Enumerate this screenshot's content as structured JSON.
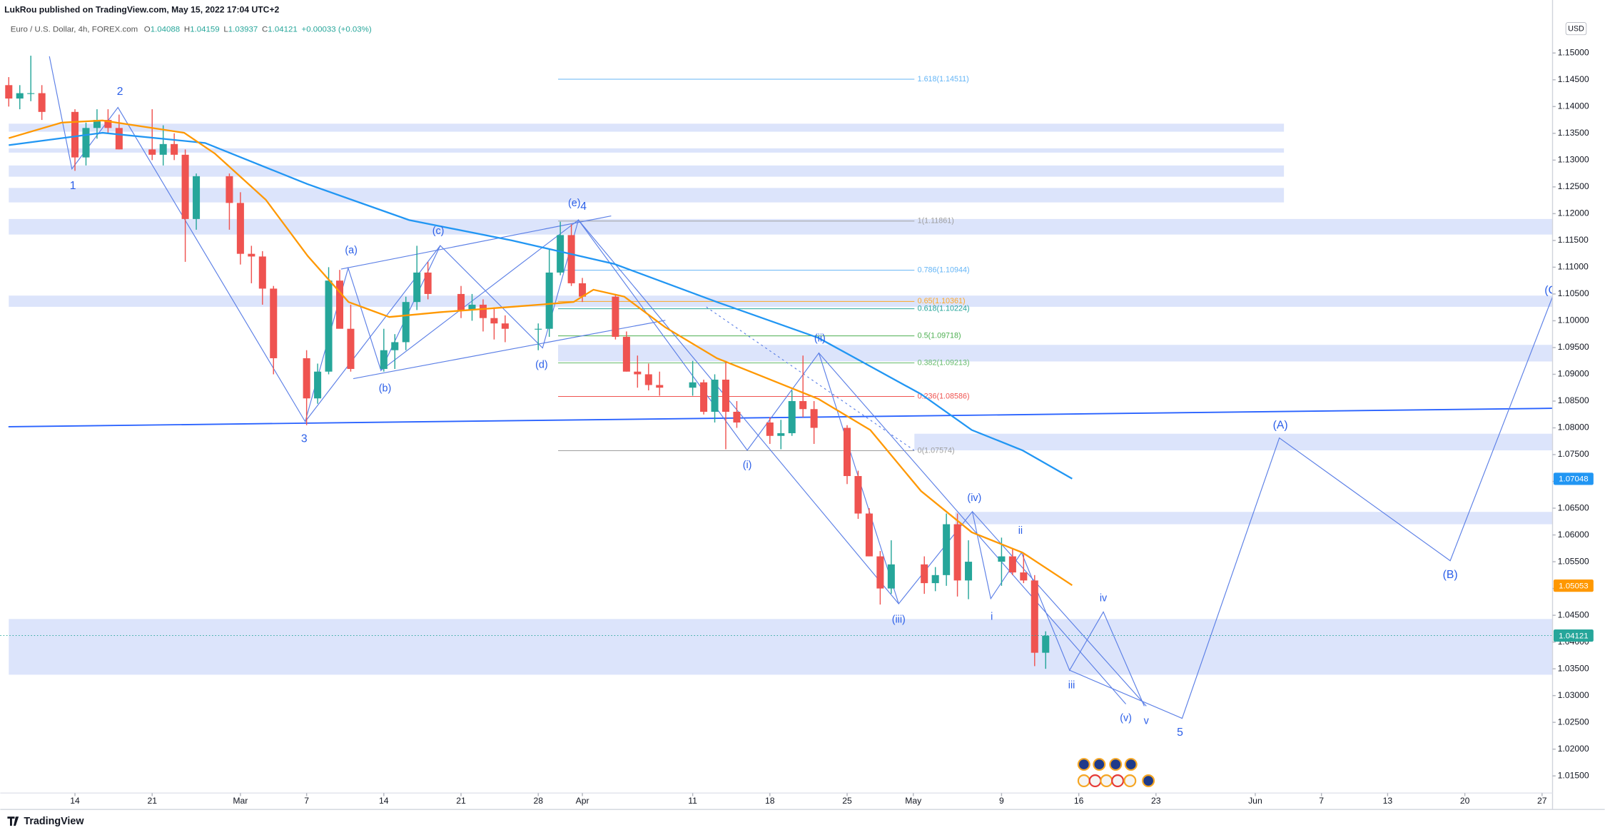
{
  "header": {
    "publisher": "LukRou published on TradingView.com, May 15, 2022 17:04 UTC+2",
    "symbol": "Euro / U.S. Dollar, 4h, FOREX.com",
    "ohlc": [
      {
        "key": "O",
        "value": "1.04088"
      },
      {
        "key": "H",
        "value": "1.04159"
      },
      {
        "key": "L",
        "value": "1.03937"
      },
      {
        "key": "C",
        "value": "1.04121"
      }
    ],
    "change": "+0.00033 (+0.03%)",
    "currency": "USD"
  },
  "chart_data": {
    "type": "candlestick",
    "x": [
      7,
      8,
      9,
      10,
      13,
      14,
      15,
      16,
      17,
      20,
      21,
      22,
      23,
      24,
      27,
      28,
      29,
      30,
      31,
      34,
      35,
      36,
      37,
      38,
      41,
      42,
      43,
      44,
      45,
      48,
      49,
      50,
      51,
      52,
      55,
      56,
      57,
      58,
      59,
      62,
      63,
      64,
      65,
      66,
      69,
      70,
      71,
      72,
      73,
      76,
      77,
      78,
      79,
      80,
      83,
      84,
      85,
      86,
      87,
      90,
      91,
      92,
      93,
      94,
      97,
      98,
      99,
      100,
      101
    ],
    "open": [
      1.144,
      1.1415,
      1.1425,
      1.1425,
      1.139,
      1.1305,
      1.136,
      1.1375,
      1.136,
      1.132,
      1.131,
      1.133,
      1.131,
      1.119,
      1.127,
      1.122,
      1.1125,
      1.112,
      1.106,
      1.093,
      1.0855,
      1.0905,
      1.1075,
      1.0985,
      1.091,
      1.0945,
      1.096,
      1.1035,
      1.109,
      1.105,
      1.102,
      1.103,
      1.1005,
      1.0995,
      1.0985,
      1.0985,
      1.109,
      1.116,
      1.107,
      1.1045,
      1.097,
      1.0905,
      1.09,
      1.088,
      1.0875,
      1.0885,
      1.083,
      1.089,
      1.083,
      1.081,
      1.0785,
      1.079,
      1.085,
      1.0835,
      1.08,
      1.071,
      1.064,
      1.056,
      1.05,
      1.0545,
      1.051,
      1.0525,
      1.062,
      1.0515,
      1.055,
      1.056,
      1.053,
      1.0515,
      1.038
    ],
    "high": [
      1.1455,
      1.144,
      1.1495,
      1.144,
      1.1395,
      1.137,
      1.1395,
      1.1395,
      1.1385,
      1.1395,
      1.1365,
      1.135,
      1.132,
      1.1275,
      1.1275,
      1.124,
      1.114,
      1.113,
      1.1065,
      1.0945,
      1.092,
      1.11,
      1.1095,
      1.103,
      1.0985,
      1.0975,
      1.1045,
      1.114,
      1.111,
      1.1065,
      1.105,
      1.104,
      1.1025,
      1.101,
      1.0995,
      1.1135,
      1.1185,
      1.118,
      1.108,
      1.105,
      1.098,
      1.0935,
      1.092,
      1.0905,
      1.0925,
      1.089,
      1.09,
      1.0925,
      1.085,
      1.082,
      1.0815,
      1.087,
      1.0935,
      1.085,
      1.0805,
      1.072,
      1.065,
      1.057,
      1.059,
      1.056,
      1.054,
      1.064,
      1.064,
      1.059,
      1.0595,
      1.0575,
      1.0565,
      1.0525,
      1.042
    ],
    "low": [
      1.14,
      1.1395,
      1.141,
      1.1375,
      1.128,
      1.129,
      1.134,
      1.135,
      1.132,
      1.13,
      1.129,
      1.13,
      1.111,
      1.117,
      1.117,
      1.1105,
      1.107,
      1.103,
      1.09,
      1.0805,
      1.0845,
      1.09,
      1.099,
      1.0905,
      1.0905,
      1.091,
      1.0945,
      1.102,
      1.104,
      1.1005,
      1.1,
      1.098,
      1.0965,
      1.096,
      1.0945,
      1.097,
      1.1085,
      1.1065,
      1.1035,
      1.0965,
      1.0905,
      1.0875,
      1.087,
      1.086,
      1.086,
      1.0825,
      1.081,
      1.076,
      1.08,
      1.077,
      1.076,
      1.0785,
      1.082,
      1.077,
      1.0695,
      1.063,
      1.056,
      1.047,
      1.049,
      1.049,
      1.0495,
      1.0505,
      1.0485,
      1.048,
      1.0505,
      1.0525,
      1.051,
      1.0355,
      1.035
    ],
    "close": [
      1.1415,
      1.1425,
      1.1425,
      1.139,
      1.1305,
      1.136,
      1.1375,
      1.136,
      1.132,
      1.131,
      1.133,
      1.131,
      1.119,
      1.127,
      1.122,
      1.1125,
      1.112,
      1.106,
      1.093,
      1.0855,
      1.0905,
      1.1075,
      1.0985,
      1.091,
      1.0945,
      1.096,
      1.1035,
      1.109,
      1.105,
      1.102,
      1.103,
      1.1005,
      1.0995,
      1.0985,
      1.0985,
      1.109,
      1.116,
      1.107,
      1.1045,
      1.097,
      1.0905,
      1.09,
      1.088,
      1.0875,
      1.0885,
      1.083,
      1.089,
      1.083,
      1.081,
      1.0785,
      1.079,
      1.085,
      1.0835,
      1.08,
      1.071,
      1.064,
      1.056,
      1.05,
      1.0545,
      1.051,
      1.0525,
      1.062,
      1.0515,
      1.055,
      1.056,
      1.053,
      1.0515,
      1.038,
      1.0412
    ],
    "up_color": "#26a69a",
    "down_color": "#ef5350",
    "series": [
      {
        "color": "#2196f3",
        "x": [
          7.0,
          15.5,
          24.8,
          34.1,
          43.3,
          52.6,
          61.9,
          71.2,
          80.4,
          89.7,
          94.3,
          98.9,
          103.4
        ],
        "values": [
          1.1328,
          1.1351,
          1.1332,
          1.1255,
          1.1188,
          1.115,
          1.1106,
          1.1035,
          1.0968,
          1.0863,
          1.0796,
          1.0758,
          1.0705
        ]
      },
      {
        "color": "#ff9800",
        "x": [
          7.0,
          11.8,
          15.5,
          22.9,
          25.7,
          30.3,
          34.1,
          37.8,
          41.5,
          46.1,
          52.6,
          58.2,
          60.0,
          62.8,
          66.5,
          71.2,
          75.8,
          80.4,
          85.1,
          89.7,
          94.3,
          98.9,
          103.4
        ],
        "values": [
          1.1341,
          1.137,
          1.1374,
          1.1351,
          1.1312,
          1.1226,
          1.1121,
          1.1035,
          1.1007,
          1.1016,
          1.1026,
          1.1035,
          1.1058,
          1.1045,
          1.0988,
          1.093,
          1.0892,
          1.0854,
          1.0796,
          1.0682,
          1.0605,
          1.0567,
          1.0506
        ]
      }
    ],
    "zone_color": "#dce4fb",
    "zones": [
      {
        "start": 7.0,
        "end": 122.6,
        "from": 1.1353,
        "to": 1.1368
      },
      {
        "start": 7.0,
        "end": 122.6,
        "from": 1.1314,
        "to": 1.1322
      },
      {
        "start": 7.0,
        "end": 122.6,
        "from": 1.1269,
        "to": 1.129
      },
      {
        "start": 7.0,
        "end": 122.6,
        "from": 1.1221,
        "to": 1.1248
      },
      {
        "start": 7.0,
        "end": 146.95,
        "from": 1.1161,
        "to": 1.119
      },
      {
        "start": 7.0,
        "end": 146.95,
        "from": 1.1026,
        "to": 1.1047
      },
      {
        "start": 56.8,
        "end": 146.95,
        "from": 1.0924,
        "to": 1.0955
      },
      {
        "start": 89.1,
        "end": 146.95,
        "from": 1.0758,
        "to": 1.0789
      },
      {
        "start": 92.8,
        "end": 146.95,
        "from": 1.062,
        "to": 1.0643
      },
      {
        "start": 7.0,
        "end": 146.95,
        "from": 1.0339,
        "to": 1.0443
      }
    ],
    "fib_range": [
      56.8,
      89.1
    ],
    "fib_levels": [
      {
        "label": "1.618(1.14511)",
        "value": 1.14511,
        "color": "#64b5f6"
      },
      {
        "label": "1(1.11861)",
        "value": 1.11861,
        "color": "#9e9e9e"
      },
      {
        "label": "0.786(1.10944)",
        "value": 1.10944,
        "color": "#64b5f6"
      },
      {
        "label": "0.65(1.10361)",
        "value": 1.10361,
        "color": "#ffa726"
      },
      {
        "label": "0.618(1.10224)",
        "value": 1.10224,
        "color": "#26a69a"
      },
      {
        "label": "0.5(1.09718)",
        "value": 1.09718,
        "color": "#4caf50"
      },
      {
        "label": "0.382(1.09213)",
        "value": 1.09213,
        "color": "#66bb6a"
      },
      {
        "label": "0.236(1.08586)",
        "value": 1.08586,
        "color": "#ef5350"
      },
      {
        "label": "0(1.07574)",
        "value": 1.07574,
        "color": "#9e9e9e"
      }
    ],
    "price_tags": [
      {
        "value": 1.07048,
        "color": "#2196f3"
      },
      {
        "value": 1.05053,
        "color": "#ff9800"
      },
      {
        "value": 1.04121,
        "color": "#26a69a",
        "line": true
      }
    ],
    "wave_labels": [
      "1",
      "2",
      "3",
      "4",
      "(e)",
      "(a)",
      "(b)",
      "(c)",
      "(d)",
      "(i)",
      "(ii)",
      "(iii)",
      "(iv)",
      "i",
      "ii",
      "iii",
      "iv",
      "v",
      "(v)",
      "5",
      "(A)",
      "(B)",
      "(C"
    ],
    "xlim": [
      6.23,
      146.95
    ],
    "xticks": [
      {
        "value": 13,
        "label": "14"
      },
      {
        "value": 20,
        "label": "21"
      },
      {
        "value": 28,
        "label": "Mar"
      },
      {
        "value": 34,
        "label": "7"
      },
      {
        "value": 41,
        "label": "14"
      },
      {
        "value": 48,
        "label": "21"
      },
      {
        "value": 55,
        "label": "28"
      },
      {
        "value": 59,
        "label": "Apr"
      },
      {
        "value": 69,
        "label": "11"
      },
      {
        "value": 76,
        "label": "18"
      },
      {
        "value": 83,
        "label": "25"
      },
      {
        "value": 89,
        "label": "May"
      },
      {
        "value": 97,
        "label": "9"
      },
      {
        "value": 104,
        "label": "16"
      },
      {
        "value": 111,
        "label": "23"
      },
      {
        "value": 120,
        "label": "Jun"
      },
      {
        "value": 126,
        "label": "7"
      },
      {
        "value": 132,
        "label": "13"
      },
      {
        "value": 139,
        "label": "20"
      },
      {
        "value": 146,
        "label": "27"
      }
    ],
    "ylim": [
      1.0118,
      1.1599
    ],
    "yticks": [
      {
        "value": 1.15,
        "label": "1.15000"
      },
      {
        "value": 1.145,
        "label": "1.14500"
      },
      {
        "value": 1.14,
        "label": "1.14000"
      },
      {
        "value": 1.135,
        "label": "1.13500"
      },
      {
        "value": 1.13,
        "label": "1.13000"
      },
      {
        "value": 1.125,
        "label": "1.12500"
      },
      {
        "value": 1.12,
        "label": "1.12000"
      },
      {
        "value": 1.115,
        "label": "1.11500"
      },
      {
        "value": 1.11,
        "label": "1.11000"
      },
      {
        "value": 1.105,
        "label": "1.10500"
      },
      {
        "value": 1.1,
        "label": "1.10000"
      },
      {
        "value": 1.095,
        "label": "1.09500"
      },
      {
        "value": 1.09,
        "label": "1.09000"
      },
      {
        "value": 1.085,
        "label": "1.08500"
      },
      {
        "value": 1.08,
        "label": "1.08000"
      },
      {
        "value": 1.075,
        "label": "1.07500"
      },
      {
        "value": 1.07,
        "label": "1.07000"
      },
      {
        "value": 1.065,
        "label": "1.06500"
      },
      {
        "value": 1.06,
        "label": "1.06000"
      },
      {
        "value": 1.055,
        "label": "1.05500"
      },
      {
        "value": 1.05,
        "label": "1.05000"
      },
      {
        "value": 1.045,
        "label": "1.04500"
      },
      {
        "value": 1.04,
        "label": "1.04000"
      },
      {
        "value": 1.035,
        "label": "1.03500"
      },
      {
        "value": 1.03,
        "label": "1.03000"
      },
      {
        "value": 1.025,
        "label": "1.02500"
      },
      {
        "value": 1.02,
        "label": "1.02000"
      },
      {
        "value": 1.015,
        "label": "1.01500"
      }
    ],
    "grid": false
  },
  "footer": {
    "brand": "TradingView"
  }
}
